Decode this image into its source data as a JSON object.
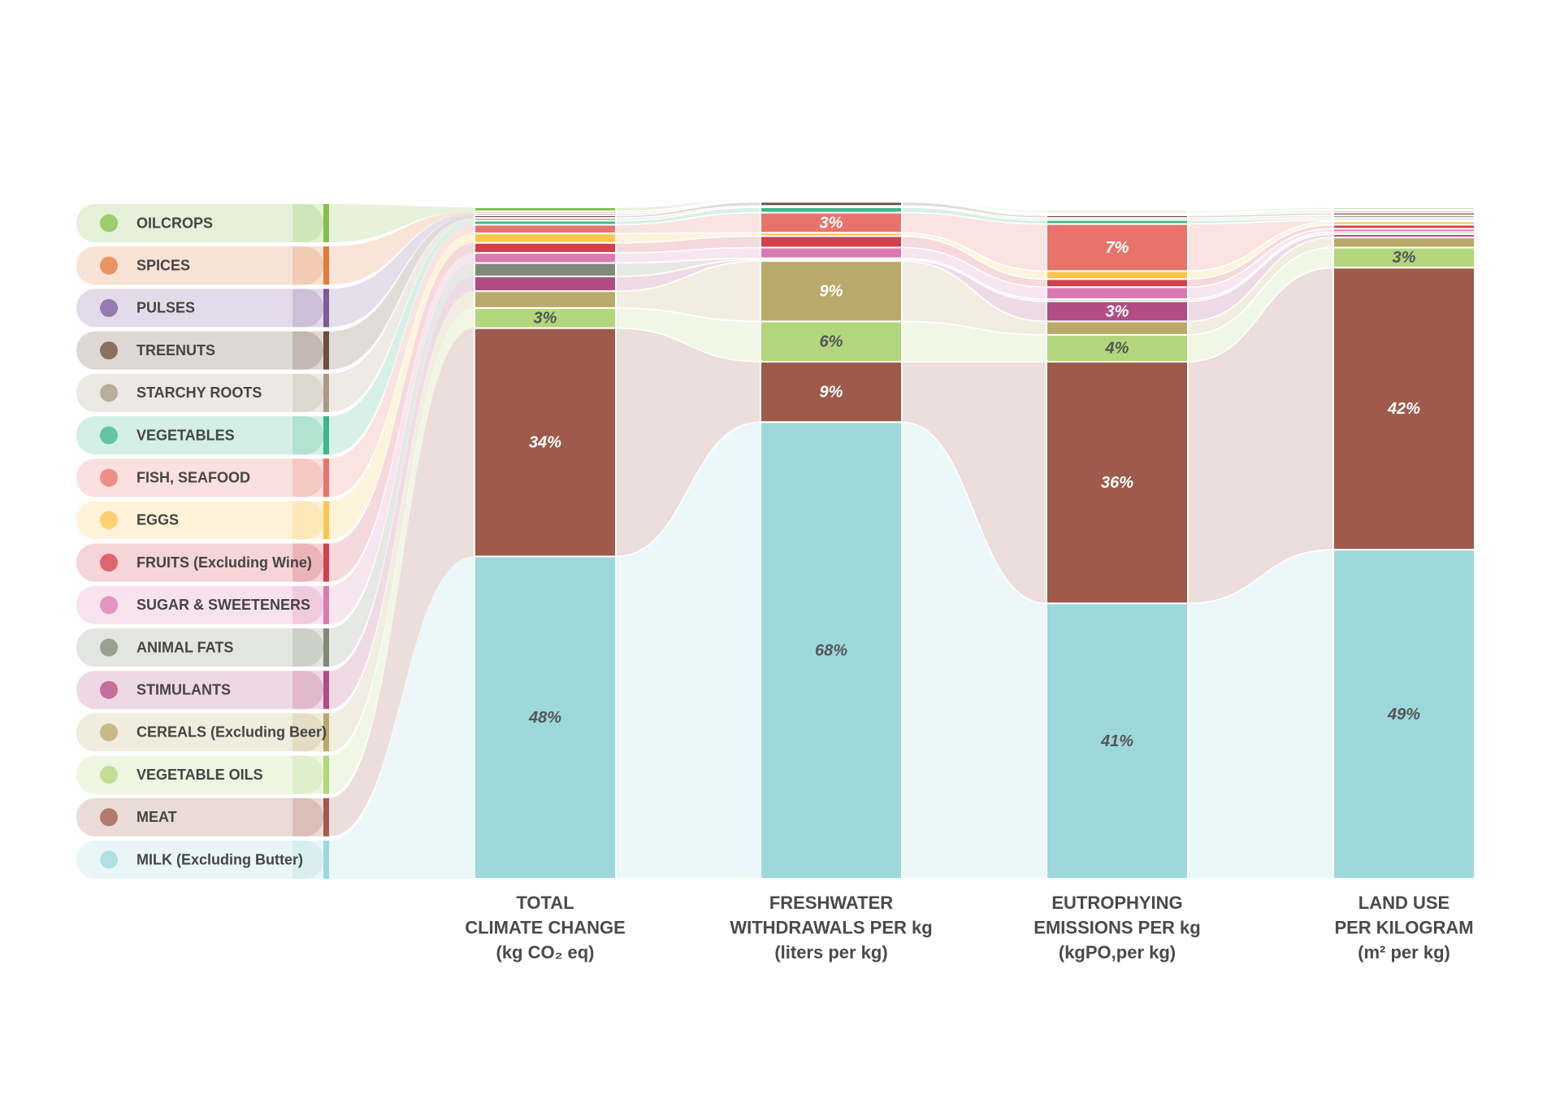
{
  "chart_data": {
    "type": "stacked_flow_bar",
    "categories": [
      [
        "TOTAL",
        "CLIMATE CHANGE",
        "(kg CO₂ eq)"
      ],
      [
        "FRESHWATER",
        "WITHDRAWALS PER kg",
        "(liters per kg)"
      ],
      [
        "EUTROPHYING",
        "EMISSIONS PER kg",
        "(kgPO,per kg)"
      ],
      [
        "LAND USE",
        "PER KILOGRAM",
        "(m² per kg)"
      ]
    ],
    "ylim": [
      0,
      100
    ],
    "series": [
      {
        "name": "OILCROPS",
        "color": "#86bf4c",
        "values": [
          0.6,
          0.2,
          0.3,
          0.3
        ],
        "value_labels": [
          null,
          null,
          null,
          null
        ]
      },
      {
        "name": "SPICES",
        "color": "#e07b39",
        "values": [
          0.3,
          0.1,
          0.2,
          0.2
        ],
        "value_labels": [
          null,
          null,
          null,
          null
        ]
      },
      {
        "name": "PULSES",
        "color": "#7e5a9b",
        "values": [
          0.3,
          0.1,
          0.2,
          0.3
        ],
        "value_labels": [
          null,
          null,
          null,
          null
        ]
      },
      {
        "name": "TREENUTS",
        "color": "#6b4e3d",
        "values": [
          0.4,
          0.6,
          0.4,
          0.4
        ],
        "value_labels": [
          null,
          null,
          null,
          null
        ]
      },
      {
        "name": "STARCHY ROOTS",
        "color": "#a89a86",
        "values": [
          0.4,
          0.2,
          0.3,
          0.4
        ],
        "value_labels": [
          null,
          null,
          null,
          null
        ]
      },
      {
        "name": "VEGETABLES",
        "color": "#3cb88a",
        "values": [
          0.6,
          0.8,
          0.6,
          0.3
        ],
        "value_labels": [
          null,
          null,
          null,
          null
        ]
      },
      {
        "name": "FISH, SEAFOOD",
        "color": "#e8736a",
        "values": [
          1.3,
          3,
          7,
          0.2
        ],
        "value_labels": [
          null,
          "3%",
          "7%",
          null
        ]
      },
      {
        "name": "EGGS",
        "color": "#fbc64f",
        "values": [
          1.4,
          0.5,
          1.2,
          0.5
        ],
        "value_labels": [
          null,
          null,
          null,
          null
        ]
      },
      {
        "name": "FRUITS (Excluding Wine)",
        "color": "#d2404b",
        "values": [
          1.5,
          1.7,
          1.2,
          0.6
        ],
        "value_labels": [
          null,
          null,
          null,
          null
        ]
      },
      {
        "name": "SUGAR & SWEETENERS",
        "color": "#d97bb0",
        "values": [
          1.5,
          1.6,
          1.8,
          0.5
        ],
        "value_labels": [
          null,
          null,
          null,
          null
        ]
      },
      {
        "name": "ANIMAL FATS",
        "color": "#7f8a78",
        "values": [
          2,
          0.2,
          0.3,
          0.3
        ],
        "value_labels": [
          null,
          null,
          null,
          null
        ]
      },
      {
        "name": "STIMULANTS",
        "color": "#b04d82",
        "values": [
          2.2,
          0.2,
          3,
          0.5
        ],
        "value_labels": [
          null,
          null,
          "3%",
          null
        ]
      },
      {
        "name": "CEREALS (Excluding Beer)",
        "color": "#b9a96a",
        "values": [
          2.5,
          9,
          2,
          1.5
        ],
        "value_labels": [
          null,
          "9%",
          null,
          null
        ]
      },
      {
        "name": "VEGETABLE OILS",
        "color": "#b3d67c",
        "values": [
          3,
          6,
          4,
          3
        ],
        "value_labels": [
          "3%",
          "6%",
          "4%",
          "3%"
        ]
      },
      {
        "name": "MEAT",
        "color": "#9e5a4a",
        "values": [
          34,
          9,
          36,
          42
        ],
        "value_labels": [
          "34%",
          "9%",
          "36%",
          "42%"
        ]
      },
      {
        "name": "MILK (Excluding Butter)",
        "color": "#9dd8dc",
        "values": [
          48,
          68,
          41,
          49
        ],
        "value_labels": [
          "48%",
          "68%",
          "41%",
          "49%"
        ]
      }
    ]
  }
}
